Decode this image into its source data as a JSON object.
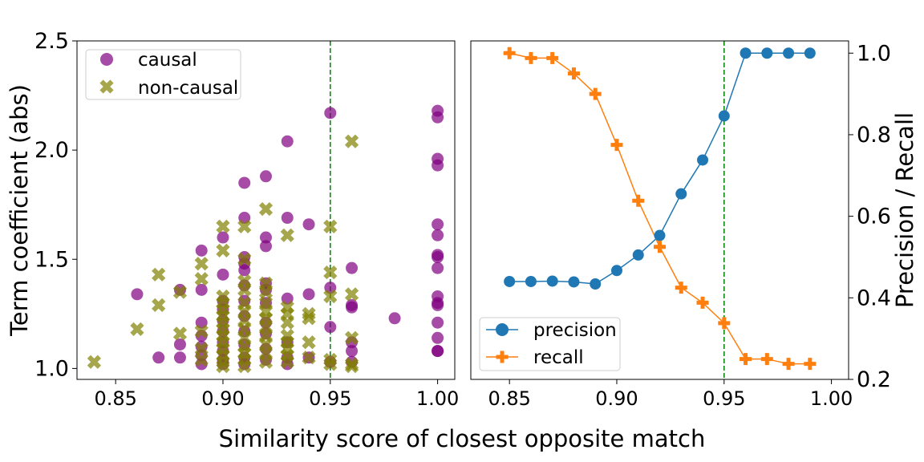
{
  "figure": {
    "shared_xlabel": "Similarity score of closest opposite match"
  },
  "chart_data": [
    {
      "type": "scatter",
      "ylabel": "Term coefficient (abs)",
      "xlim": [
        0.832,
        1.008
      ],
      "ylim": [
        0.95,
        2.5
      ],
      "xticks": [
        0.85,
        0.9,
        0.95,
        1.0
      ],
      "xtick_labels": [
        "0.85",
        "0.90",
        "0.95",
        "1.00"
      ],
      "yticks": [
        1.0,
        1.5,
        2.0,
        2.5
      ],
      "ytick_labels": [
        "1.0",
        "1.5",
        "2.0",
        "2.5"
      ],
      "vline": {
        "x": 0.95,
        "color": "#008000",
        "style": "dashed"
      },
      "legend": {
        "placement": "top-left"
      },
      "series": [
        {
          "name": "causal",
          "marker": "circle",
          "color": "#800080",
          "points": [
            [
              0.86,
              1.34
            ],
            [
              0.87,
              1.05
            ],
            [
              0.88,
              1.36
            ],
            [
              0.88,
              1.11
            ],
            [
              0.88,
              1.05
            ],
            [
              0.89,
              1.54
            ],
            [
              0.89,
              1.36
            ],
            [
              0.89,
              1.21
            ],
            [
              0.89,
              1.15
            ],
            [
              0.89,
              1.1
            ],
            [
              0.89,
              1.06
            ],
            [
              0.89,
              1.02
            ],
            [
              0.9,
              1.6
            ],
            [
              0.9,
              1.43
            ],
            [
              0.9,
              1.31
            ],
            [
              0.9,
              1.27
            ],
            [
              0.9,
              1.22
            ],
            [
              0.9,
              1.17
            ],
            [
              0.9,
              1.12
            ],
            [
              0.9,
              1.08
            ],
            [
              0.9,
              1.04
            ],
            [
              0.9,
              1.02
            ],
            [
              0.91,
              1.85
            ],
            [
              0.91,
              1.69
            ],
            [
              0.91,
              1.51
            ],
            [
              0.91,
              1.48
            ],
            [
              0.91,
              1.45
            ],
            [
              0.91,
              1.38
            ],
            [
              0.91,
              1.31
            ],
            [
              0.91,
              1.24
            ],
            [
              0.91,
              1.17
            ],
            [
              0.91,
              1.11
            ],
            [
              0.91,
              1.05
            ],
            [
              0.91,
              1.02
            ],
            [
              0.92,
              1.88
            ],
            [
              0.92,
              1.6
            ],
            [
              0.92,
              1.56
            ],
            [
              0.92,
              1.39
            ],
            [
              0.92,
              1.36
            ],
            [
              0.92,
              1.3
            ],
            [
              0.92,
              1.21
            ],
            [
              0.92,
              1.16
            ],
            [
              0.92,
              1.09
            ],
            [
              0.92,
              1.04
            ],
            [
              0.93,
              2.04
            ],
            [
              0.93,
              1.69
            ],
            [
              0.93,
              1.32
            ],
            [
              0.93,
              1.12
            ],
            [
              0.93,
              1.05
            ],
            [
              0.93,
              1.02
            ],
            [
              0.94,
              1.66
            ],
            [
              0.94,
              1.34
            ],
            [
              0.94,
              1.05
            ],
            [
              0.95,
              2.17
            ],
            [
              0.95,
              1.37
            ],
            [
              0.95,
              1.19
            ],
            [
              0.95,
              1.03
            ],
            [
              0.96,
              1.46
            ],
            [
              0.96,
              1.29
            ],
            [
              0.96,
              1.28
            ],
            [
              0.96,
              1.12
            ],
            [
              0.96,
              1.08
            ],
            [
              0.96,
              1.03
            ],
            [
              0.98,
              1.23
            ],
            [
              1.0,
              2.18
            ],
            [
              1.0,
              2.15
            ],
            [
              1.0,
              1.96
            ],
            [
              1.0,
              1.93
            ],
            [
              1.0,
              1.66
            ],
            [
              1.0,
              1.61
            ],
            [
              1.0,
              1.52
            ],
            [
              1.0,
              1.51
            ],
            [
              1.0,
              1.46
            ],
            [
              1.0,
              1.33
            ],
            [
              1.0,
              1.3
            ],
            [
              1.0,
              1.29
            ],
            [
              1.0,
              1.21
            ],
            [
              1.0,
              1.14
            ],
            [
              1.0,
              1.08
            ],
            [
              1.0,
              1.08
            ]
          ]
        },
        {
          "name": "non-causal",
          "marker": "x",
          "color": "#808000",
          "points": [
            [
              0.84,
              1.03
            ],
            [
              0.86,
              1.18
            ],
            [
              0.87,
              1.43
            ],
            [
              0.87,
              1.29
            ],
            [
              0.88,
              1.35
            ],
            [
              0.88,
              1.16
            ],
            [
              0.89,
              1.48
            ],
            [
              0.89,
              1.41
            ],
            [
              0.89,
              1.17
            ],
            [
              0.89,
              1.09
            ],
            [
              0.89,
              1.04
            ],
            [
              0.9,
              1.65
            ],
            [
              0.9,
              1.54
            ],
            [
              0.9,
              1.33
            ],
            [
              0.9,
              1.3
            ],
            [
              0.9,
              1.27
            ],
            [
              0.9,
              1.24
            ],
            [
              0.9,
              1.21
            ],
            [
              0.9,
              1.18
            ],
            [
              0.9,
              1.15
            ],
            [
              0.9,
              1.12
            ],
            [
              0.9,
              1.09
            ],
            [
              0.9,
              1.06
            ],
            [
              0.9,
              1.03
            ],
            [
              0.9,
              1.01
            ],
            [
              0.91,
              1.65
            ],
            [
              0.91,
              1.5
            ],
            [
              0.91,
              1.4
            ],
            [
              0.91,
              1.36
            ],
            [
              0.91,
              1.3
            ],
            [
              0.91,
              1.26
            ],
            [
              0.91,
              1.22
            ],
            [
              0.91,
              1.18
            ],
            [
              0.91,
              1.14
            ],
            [
              0.91,
              1.1
            ],
            [
              0.91,
              1.07
            ],
            [
              0.91,
              1.04
            ],
            [
              0.91,
              1.01
            ],
            [
              0.92,
              1.73
            ],
            [
              0.92,
              1.39
            ],
            [
              0.92,
              1.35
            ],
            [
              0.92,
              1.3
            ],
            [
              0.92,
              1.26
            ],
            [
              0.92,
              1.23
            ],
            [
              0.92,
              1.19
            ],
            [
              0.92,
              1.15
            ],
            [
              0.92,
              1.11
            ],
            [
              0.92,
              1.07
            ],
            [
              0.92,
              1.03
            ],
            [
              0.93,
              1.61
            ],
            [
              0.93,
              1.28
            ],
            [
              0.93,
              1.25
            ],
            [
              0.93,
              1.21
            ],
            [
              0.93,
              1.15
            ],
            [
              0.93,
              1.12
            ],
            [
              0.93,
              1.09
            ],
            [
              0.93,
              1.06
            ],
            [
              0.93,
              1.03
            ],
            [
              0.94,
              1.25
            ],
            [
              0.94,
              1.23
            ],
            [
              0.94,
              1.12
            ],
            [
              0.94,
              1.05
            ],
            [
              0.95,
              1.65
            ],
            [
              0.95,
              1.44
            ],
            [
              0.95,
              1.33
            ],
            [
              0.95,
              1.04
            ],
            [
              0.95,
              1.02
            ],
            [
              0.96,
              2.04
            ],
            [
              0.96,
              1.34
            ],
            [
              0.96,
              1.14
            ],
            [
              0.96,
              1.02
            ],
            [
              0.96,
              1.01
            ]
          ]
        }
      ]
    },
    {
      "type": "line",
      "ylabel": "Precision / Recall",
      "ylabel_side": "right",
      "xlim": [
        0.832,
        1.008
      ],
      "ylim": [
        0.2,
        1.03
      ],
      "xticks": [
        0.85,
        0.9,
        0.95,
        1.0
      ],
      "xtick_labels": [
        "0.85",
        "0.90",
        "0.95",
        "1.00"
      ],
      "yticks": [
        0.2,
        0.4,
        0.6,
        0.8,
        1.0
      ],
      "ytick_labels": [
        "0.2",
        "0.4",
        "0.6",
        "0.8",
        "1.0"
      ],
      "vline": {
        "x": 0.95,
        "color": "#008000",
        "style": "dashed"
      },
      "legend": {
        "placement": "bottom-left"
      },
      "x": [
        0.85,
        0.86,
        0.87,
        0.88,
        0.89,
        0.9,
        0.91,
        0.92,
        0.93,
        0.94,
        0.95,
        0.96,
        0.97,
        0.98,
        0.99
      ],
      "series": [
        {
          "name": "precision",
          "marker": "circle",
          "color": "#1f77b4",
          "values": [
            0.44,
            0.44,
            0.441,
            0.439,
            0.434,
            0.467,
            0.505,
            0.553,
            0.655,
            0.738,
            0.846,
            1.0,
            1.0,
            1.0,
            1.0
          ]
        },
        {
          "name": "recall",
          "marker": "plus",
          "color": "#ff7f0e",
          "values": [
            1.0,
            0.988,
            0.988,
            0.95,
            0.9,
            0.775,
            0.638,
            0.525,
            0.425,
            0.388,
            0.338,
            0.25,
            0.25,
            0.238,
            0.238
          ]
        }
      ]
    }
  ]
}
